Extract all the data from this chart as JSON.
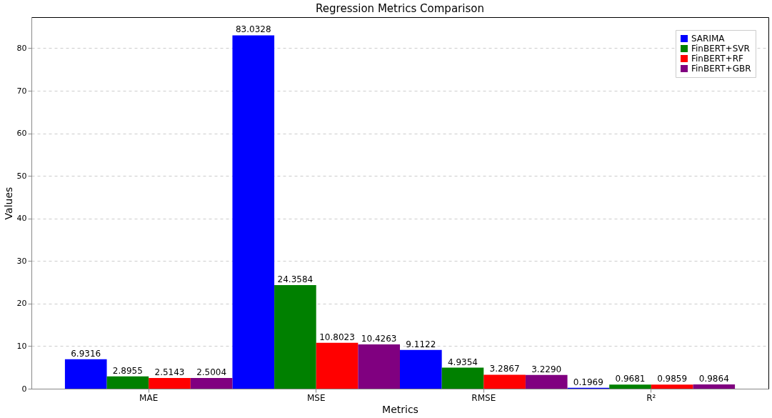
{
  "chart_data": {
    "type": "bar",
    "title": "Regression Metrics Comparison",
    "xlabel": "Metrics",
    "ylabel": "Values",
    "categories": [
      "MAE",
      "MSE",
      "RMSE",
      "R²"
    ],
    "series": [
      {
        "name": "SARIMA",
        "color": "#0000ff",
        "values": [
          6.9316,
          83.0328,
          9.1122,
          0.1969
        ],
        "value_labels": [
          "6.9316",
          "83.0328",
          "9.1122",
          "0.1969"
        ]
      },
      {
        "name": "FinBERT+SVR",
        "color": "#008000",
        "values": [
          2.8955,
          24.3584,
          4.9354,
          0.9681
        ],
        "value_labels": [
          "2.8955",
          "24.3584",
          "4.9354",
          "0.9681"
        ]
      },
      {
        "name": "FinBERT+RF",
        "color": "#ff0000",
        "values": [
          2.5143,
          10.8023,
          3.2867,
          0.9859
        ],
        "value_labels": [
          "2.5143",
          "10.8023",
          "3.2867",
          "0.9859"
        ]
      },
      {
        "name": "FinBERT+GBR",
        "color": "#800080",
        "values": [
          2.5004,
          10.4263,
          3.229,
          0.9864
        ],
        "value_labels": [
          "2.5004",
          "10.4263",
          "3.2290",
          "0.9864"
        ]
      }
    ],
    "ylim": [
      0,
      87.3
    ],
    "yticks": [
      0,
      10,
      20,
      30,
      40,
      50,
      60,
      70,
      80
    ],
    "grid": "y",
    "legend": "top right"
  }
}
